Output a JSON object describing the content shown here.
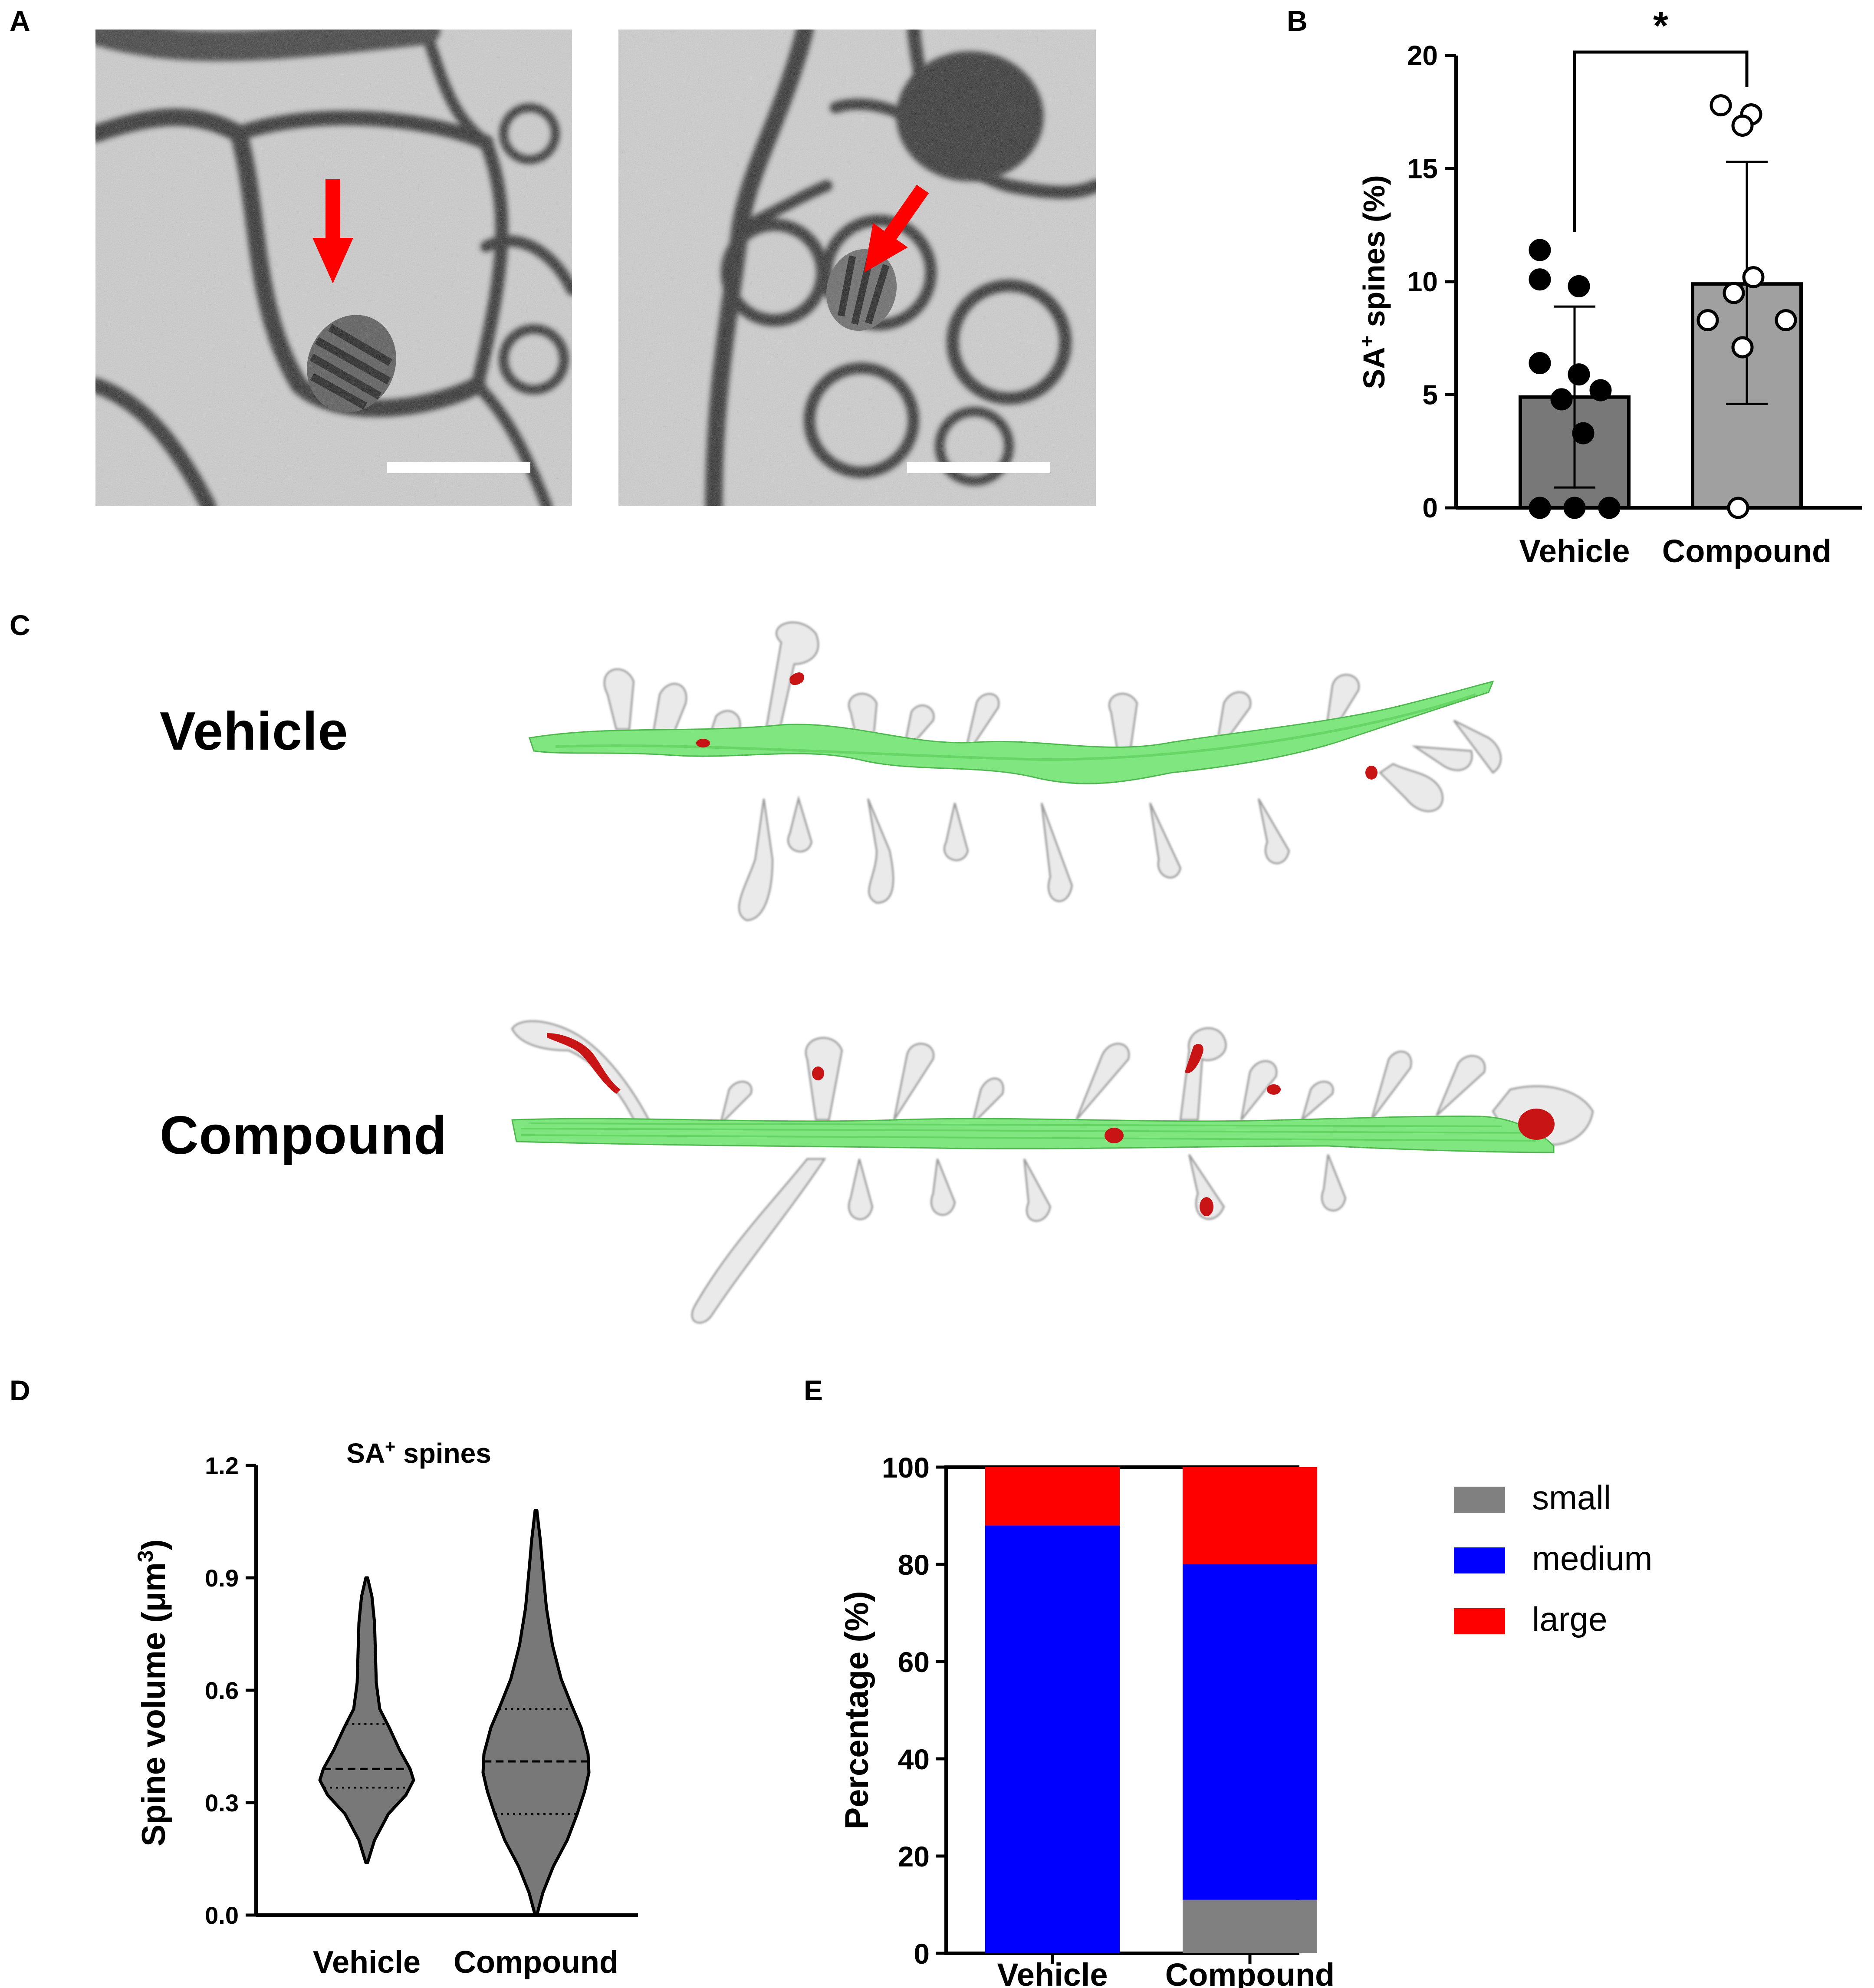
{
  "panel_letters": {
    "A": "A",
    "B": "B",
    "C": "C",
    "D": "D",
    "E": "E"
  },
  "panel_c": {
    "row1_label": "Vehicle",
    "row2_label": "Compound"
  },
  "chart_data": [
    {
      "panel": "B",
      "type": "bar",
      "ylabel_main": "SA",
      "ylabel_sup": "+",
      "ylabel_rest": " spines (%)",
      "categories": [
        "Vehicle",
        "Compound"
      ],
      "ylim": [
        0,
        20
      ],
      "yticks": [
        "0",
        "5",
        "10",
        "15",
        "20"
      ],
      "series": [
        {
          "values": [
            4.9,
            9.9
          ]
        }
      ],
      "sd": [
        [
          0.9,
          8.9
        ],
        [
          4.6,
          15.3
        ]
      ],
      "points": {
        "Vehicle": [
          11.4,
          10.1,
          9.8,
          6.4,
          5.9,
          5.2,
          4.8,
          3.3,
          0.0,
          0.0,
          0.0
        ],
        "Compound": [
          17.8,
          17.4,
          16.9,
          10.2,
          9.5,
          8.3,
          8.3,
          7.1,
          0.0
        ]
      },
      "significance": "*",
      "bar_colors": [
        "#787878",
        "#a0a0a0"
      ],
      "point_fills": [
        "#000000",
        "#ffffff"
      ]
    },
    {
      "panel": "D",
      "type": "violin",
      "title_main": "SA",
      "title_sup": "+",
      "title_rest": " spines",
      "ylabel_main": "Spine volume (μm",
      "ylabel_sup": "3",
      "ylabel_rest": ")",
      "categories": [
        "Vehicle",
        "Compound"
      ],
      "ylim": [
        0,
        1.2
      ],
      "yticks": [
        "0.0",
        "0.3",
        "0.6",
        "0.9",
        "1.2"
      ],
      "medians": [
        0.39,
        0.41
      ],
      "quartiles": [
        [
          0.34,
          0.51
        ],
        [
          0.27,
          0.55
        ]
      ],
      "range": [
        [
          0.14,
          0.9
        ],
        [
          0.0,
          1.08
        ]
      ],
      "fill": "#787878"
    },
    {
      "panel": "E",
      "type": "bar",
      "stacked": true,
      "ylabel": "Percentage (%)",
      "categories": [
        "Vehicle",
        "Compound"
      ],
      "ylim": [
        0,
        100
      ],
      "yticks": [
        "0",
        "20",
        "40",
        "60",
        "80",
        "100"
      ],
      "series": [
        {
          "name": "small",
          "values": [
            0,
            11
          ],
          "color": "#808080"
        },
        {
          "name": "medium",
          "values": [
            88,
            69
          ],
          "color": "#0000ff"
        },
        {
          "name": "large",
          "values": [
            12,
            20
          ],
          "color": "#ff0000"
        }
      ],
      "legend_position": "right"
    }
  ]
}
